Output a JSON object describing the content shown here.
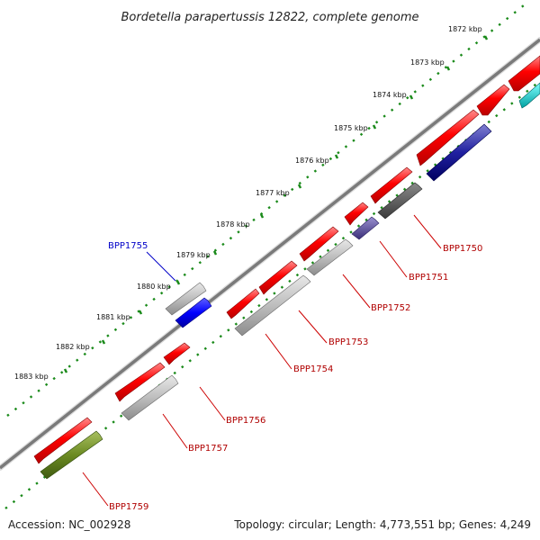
{
  "title": "Bordetella parapertussis 12822, complete genome",
  "footer": {
    "accession": "Accession: NC_002928",
    "summary": "Topology: circular; Length: 4,773,551 bp; Genes: 4,249"
  },
  "ticks": [
    "1872 kbp",
    "1873 kbp",
    "1874 kbp",
    "1875 kbp",
    "1876 kbp",
    "1877 kbp",
    "1878 kbp",
    "1879 kbp",
    "1880 kbp",
    "1881 kbp",
    "1882 kbp",
    "1883 kbp"
  ],
  "gene_labels": [
    "BPP1750",
    "BPP1751",
    "BPP1752",
    "BPP1753",
    "BPP1754",
    "BPP1755",
    "BPP1756",
    "BPP1757",
    "BPP1759"
  ],
  "colors": {
    "forward": "#ff0000",
    "reverse_grey": "#b4b4b4",
    "reverse_dark": "#5a5a5a",
    "navy": "#1a1a8a",
    "slate": "#4a3f8a",
    "blue": "#0000ff",
    "olive": "#6b8a22",
    "cyan": "#00c8c8",
    "backbone": "#808080",
    "tick": "#1a8a1a"
  }
}
